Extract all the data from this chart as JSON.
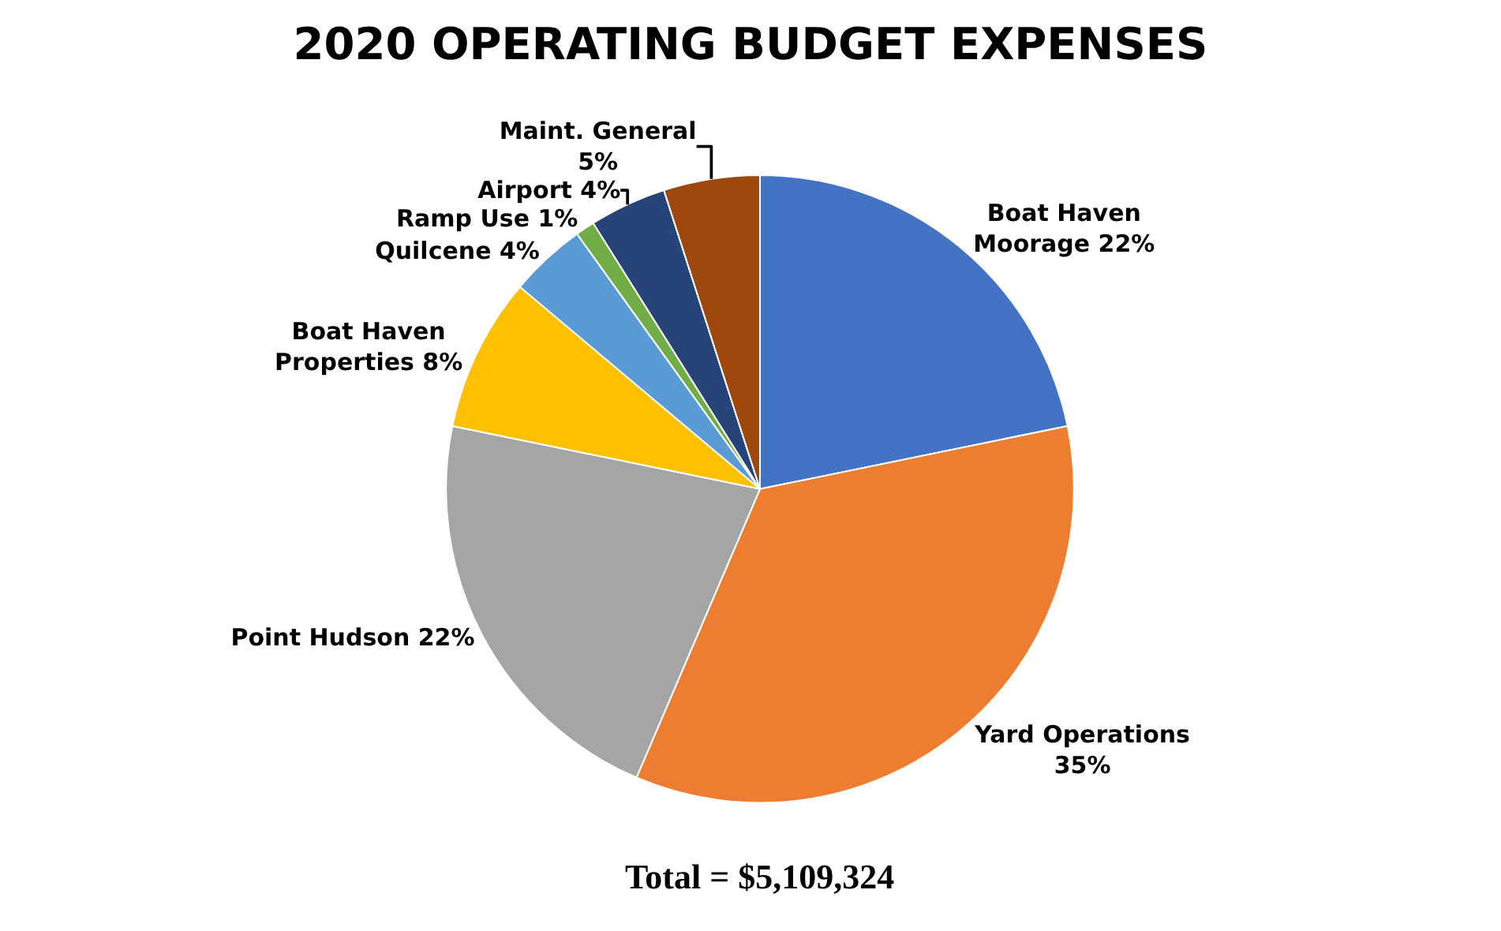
{
  "chart_data": {
    "type": "pie",
    "title": "2020 OPERATING BUDGET EXPENSES",
    "categories": [
      "Boat Haven Moorage",
      "Yard Operations",
      "Point Hudson",
      "Boat Haven Properties",
      "Quilcene",
      "Ramp Use",
      "Airport",
      "Maint. General"
    ],
    "values": [
      22,
      35,
      22,
      8,
      4,
      1,
      4,
      5
    ],
    "value_labels": [
      "22%",
      "35%",
      "22%",
      "8%",
      "4%",
      "1%",
      "4%",
      "5%"
    ],
    "colors": [
      "#4472c4",
      "#ed7d31",
      "#a5a5a5",
      "#ffc000",
      "#5b9bd5",
      "#70ad47",
      "#264478",
      "#9e480e"
    ],
    "annotations": [
      "Total = $5,109,324"
    ],
    "legend": false
  }
}
